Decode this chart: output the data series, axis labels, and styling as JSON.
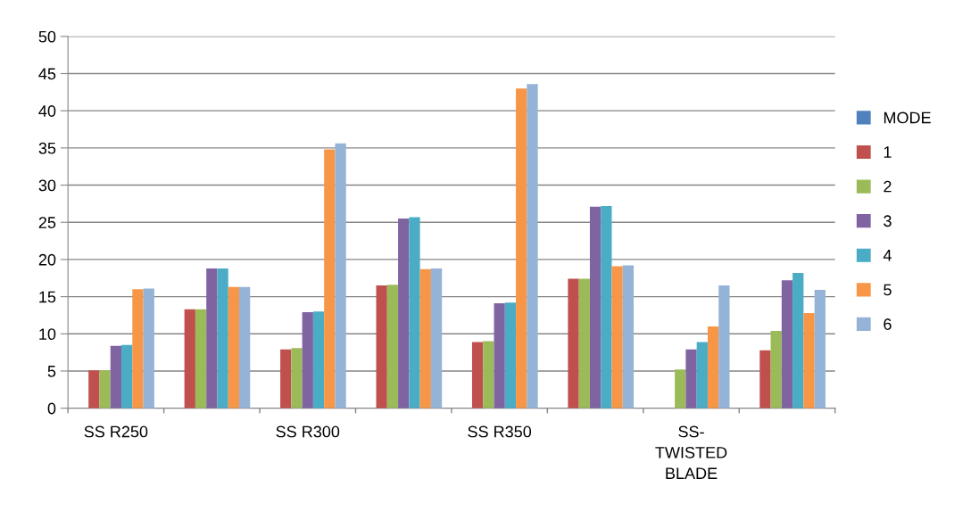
{
  "chart_data": {
    "type": "bar",
    "categories": [
      "SS R250",
      null,
      "SS R300",
      null,
      "SS R350",
      null,
      "SS-\nTWISTED\nBLADE",
      null
    ],
    "series": [
      {
        "name": "MODE",
        "color": "#4f81bd",
        "values": [
          null,
          null,
          null,
          null,
          null,
          null,
          null,
          null
        ]
      },
      {
        "name": "1",
        "color": "#c0504d",
        "values": [
          5.1,
          13.3,
          7.9,
          16.5,
          8.9,
          17.4,
          null,
          7.8
        ]
      },
      {
        "name": "2",
        "color": "#9bbb59",
        "values": [
          5.1,
          13.3,
          8.1,
          16.6,
          9.0,
          17.4,
          5.2,
          10.4
        ]
      },
      {
        "name": "3",
        "color": "#8064a2",
        "values": [
          8.4,
          18.8,
          12.9,
          25.5,
          14.1,
          27.1,
          7.9,
          17.2
        ]
      },
      {
        "name": "4",
        "color": "#4bacc6",
        "values": [
          8.5,
          18.8,
          13.0,
          25.7,
          14.2,
          27.2,
          8.9,
          18.2
        ]
      },
      {
        "name": "5",
        "color": "#f79646",
        "values": [
          16.0,
          16.3,
          34.8,
          18.7,
          43.0,
          19.1,
          11.0,
          12.8
        ]
      },
      {
        "name": "6",
        "color": "#95b3d7",
        "values": [
          16.1,
          16.3,
          35.6,
          18.8,
          43.6,
          19.2,
          16.5,
          15.9
        ]
      }
    ],
    "ylim": [
      0,
      50
    ],
    "yticks": [
      0,
      5,
      10,
      15,
      20,
      25,
      30,
      35,
      40,
      45,
      50
    ],
    "grid": "y",
    "legend": "right"
  }
}
